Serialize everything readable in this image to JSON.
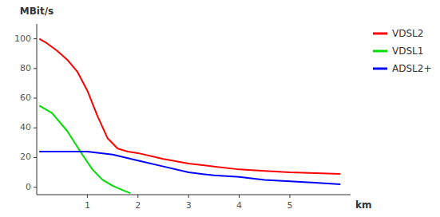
{
  "chart_data": {
    "type": "line",
    "y_label": "MBit/s",
    "x_label": "km",
    "xlim": [
      0,
      6.2
    ],
    "ylim": [
      -5,
      110
    ],
    "xticks": [
      1,
      2,
      3,
      4,
      5
    ],
    "yticks": [
      0,
      20,
      40,
      60,
      80,
      100
    ],
    "grid": false,
    "legend": "right",
    "series": [
      {
        "name": "VDSL2",
        "color": "#ff0000",
        "x": [
          0.05,
          0.2,
          0.4,
          0.6,
          0.8,
          1.0,
          1.2,
          1.4,
          1.6,
          1.8,
          2.0,
          2.5,
          3.0,
          3.5,
          4.0,
          4.5,
          5.0,
          5.5,
          6.0
        ],
        "values": [
          100,
          97,
          92,
          86,
          78,
          65,
          48,
          33,
          26,
          24,
          23,
          19,
          16,
          14,
          12,
          11,
          10,
          9.5,
          9
        ]
      },
      {
        "name": "VDSL1",
        "color": "#00dd00",
        "x": [
          0.05,
          0.3,
          0.6,
          0.9,
          1.1,
          1.3,
          1.5,
          1.7,
          1.85
        ],
        "values": [
          55,
          50,
          38,
          22,
          12,
          5,
          1,
          -2,
          -4
        ]
      },
      {
        "name": "ADSL2+",
        "color": "#0000ff",
        "x": [
          0.05,
          0.5,
          1.0,
          1.5,
          2.0,
          2.5,
          3.0,
          3.5,
          4.0,
          4.5,
          5.0,
          5.5,
          6.0
        ],
        "values": [
          24,
          24,
          24,
          22,
          18,
          14,
          10,
          8,
          7,
          5,
          4,
          3,
          2
        ]
      }
    ]
  }
}
